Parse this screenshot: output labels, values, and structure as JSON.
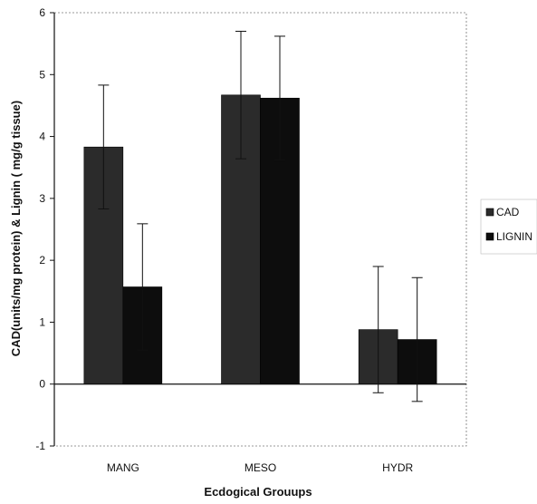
{
  "chart_data": {
    "type": "bar",
    "categories": [
      "MANG",
      "MESO",
      "HYDR"
    ],
    "series": [
      {
        "name": "CAD",
        "values": [
          3.83,
          4.67,
          0.88
        ],
        "errors": [
          1.0,
          1.03,
          1.02
        ],
        "color": "#2b2b2b"
      },
      {
        "name": "LIGNIN",
        "values": [
          1.57,
          4.62,
          0.72
        ],
        "errors": [
          1.02,
          1.0,
          1.0
        ],
        "color": "#0d0d0d"
      }
    ],
    "title": "",
    "xlabel": "Ecdogical Grouups",
    "ylabel": "CAD(units/mg protein) & Lignin ( mg/g tissue)",
    "ylim": [
      -1,
      6
    ],
    "yticks": [
      -1,
      0,
      1,
      2,
      3,
      4,
      5,
      6
    ],
    "grid": false,
    "legend_position": "right"
  }
}
